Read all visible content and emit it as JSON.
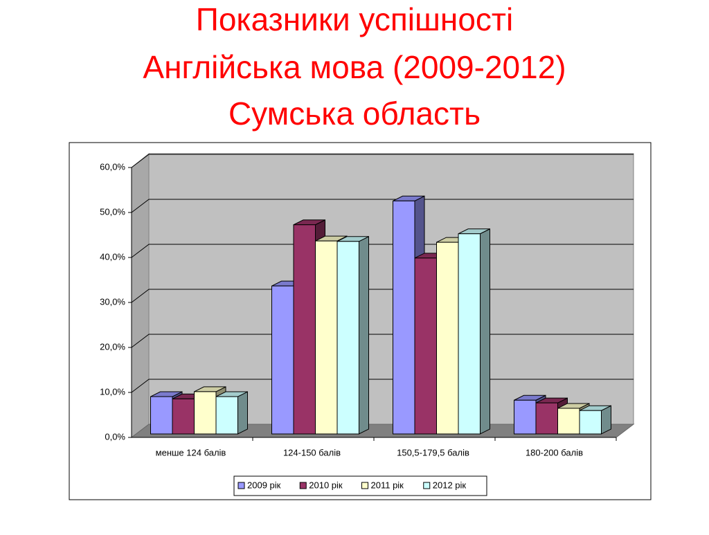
{
  "chart_data": {
    "type": "bar3d",
    "title": [
      "Показники успішності",
      "Англійська мова (2009-2012)",
      "Сумська область"
    ],
    "categories": [
      "менше 124 балів",
      "124-150 балів",
      "150,5-179,5 балів",
      "180-200 балів"
    ],
    "series": [
      {
        "name": "2009 рік",
        "color": "#9999ff",
        "values": [
          8.3,
          32.9,
          51.8,
          7.5
        ]
      },
      {
        "name": "2010 рік",
        "color": "#993366",
        "values": [
          7.8,
          46.5,
          39.1,
          6.9
        ]
      },
      {
        "name": "2011 рік",
        "color": "#ffffcc",
        "values": [
          9.4,
          42.9,
          42.6,
          5.7
        ]
      },
      {
        "name": "2012 рік",
        "color": "#ccffff",
        "values": [
          8.3,
          42.8,
          44.5,
          5.2
        ]
      }
    ],
    "ylim": [
      0,
      60
    ],
    "yticks": [
      {
        "value": 0,
        "label": "0,0%"
      },
      {
        "value": 10,
        "label": "10,0%"
      },
      {
        "value": 20,
        "label": "20,0%"
      },
      {
        "value": 30,
        "label": "30,0%"
      },
      {
        "value": 40,
        "label": "40,0%"
      },
      {
        "value": 50,
        "label": "50,0%"
      },
      {
        "value": 60,
        "label": "60,0%"
      }
    ],
    "grid": true,
    "legend": "bottom"
  }
}
